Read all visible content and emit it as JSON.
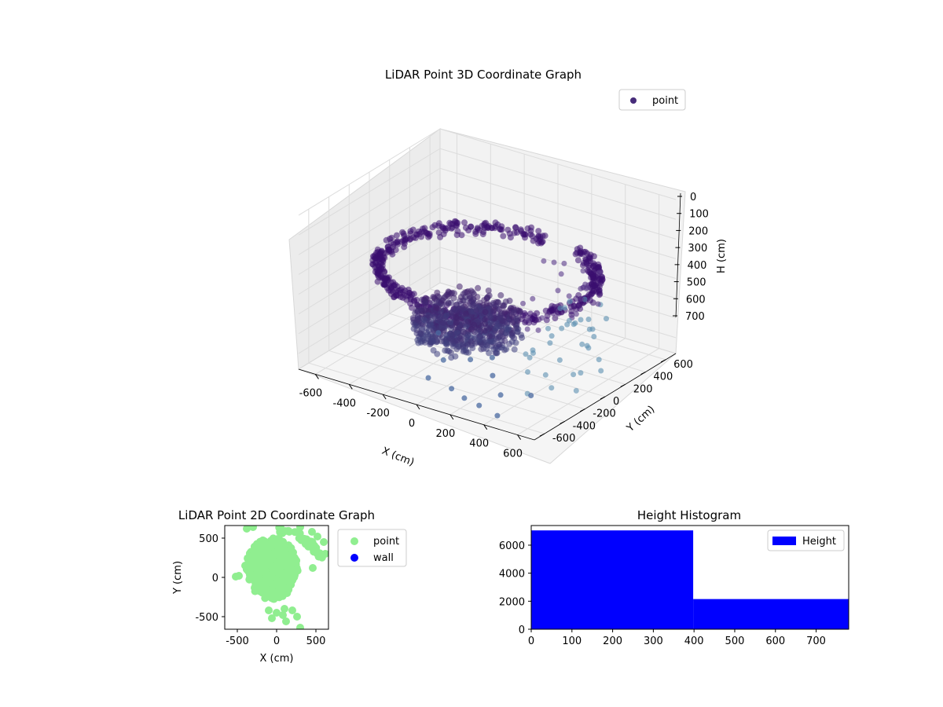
{
  "chart_data": [
    {
      "id": "lidar3d",
      "type": "scatter",
      "title": "LiDAR Point 3D Coordinate Graph",
      "xlabel": "X (cm)",
      "ylabel": "Y (cm)",
      "zlabel": "H (cm)",
      "xlim": [
        -700,
        700
      ],
      "ylim": [
        -700,
        700
      ],
      "zlim": [
        0,
        780
      ],
      "x_ticks": [
        -600,
        -400,
        -200,
        0,
        200,
        400,
        600
      ],
      "y_ticks": [
        -600,
        -400,
        -200,
        0,
        200,
        400,
        600
      ],
      "z_ticks": [
        0,
        100,
        200,
        300,
        400,
        500,
        600,
        700
      ],
      "z_inverted": true,
      "legend": {
        "placement": "top-right",
        "entries": [
          {
            "label": "point",
            "color": "#472c7a"
          }
        ]
      },
      "colors": {
        "dark": "#3b0f70",
        "mid": "#3b528b",
        "light": "#5b8fb0"
      },
      "note_colormap": "viridis-like, darker with greater height",
      "series": [
        {
          "name": "point",
          "kind": "ring",
          "r": 560,
          "theta_range": [
            90,
            430
          ],
          "h_range": [
            300,
            360
          ]
        },
        {
          "name": "point",
          "kind": "blob",
          "cx": -150,
          "cy": 50,
          "rx": 280,
          "ry": 280,
          "h_range": [
            320,
            480
          ]
        },
        {
          "name": "point",
          "kind": "sparse",
          "values": [
            {
              "x": -50,
              "y": -500,
              "h": 720
            },
            {
              "x": 100,
              "y": -520,
              "h": 730
            },
            {
              "x": 200,
              "y": -560,
              "h": 740
            },
            {
              "x": 300,
              "y": -580,
              "h": 745
            },
            {
              "x": 420,
              "y": -600,
              "h": 760
            },
            {
              "x": -80,
              "y": -300,
              "h": 700
            },
            {
              "x": 50,
              "y": -250,
              "h": 680
            },
            {
              "x": 150,
              "y": -200,
              "h": 660
            },
            {
              "x": 230,
              "y": -330,
              "h": 690
            },
            {
              "x": -200,
              "y": -150,
              "h": 640
            },
            {
              "x": 350,
              "y": -450,
              "h": 720
            },
            {
              "x": 500,
              "y": -400,
              "h": 700
            }
          ]
        }
      ]
    },
    {
      "id": "lidar2d",
      "type": "scatter",
      "title": "LiDAR Point 2D Coordinate Graph",
      "xlabel": "X (cm)",
      "ylabel": "Y (cm)",
      "xlim": [
        -660,
        660
      ],
      "ylim": [
        -660,
        660
      ],
      "x_ticks": [
        -500,
        0,
        500
      ],
      "y_ticks": [
        -500,
        0,
        500
      ],
      "legend": {
        "placement": "outside-right",
        "entries": [
          {
            "label": "point",
            "color": "#90ee90"
          },
          {
            "label": "wall",
            "color": "#0000ff"
          }
        ]
      },
      "series": [
        {
          "name": "point",
          "color": "#90ee90",
          "blob": {
            "cx": -60,
            "cy": 120,
            "rx": 330,
            "ry": 380
          }
        },
        {
          "name": "point",
          "color": "#90ee90",
          "values": [
            {
              "x": -380,
              "y": 620
            },
            {
              "x": -300,
              "y": 640
            },
            {
              "x": 300,
              "y": 640
            },
            {
              "x": 450,
              "y": 580
            },
            {
              "x": 520,
              "y": 520
            },
            {
              "x": 600,
              "y": 450
            },
            {
              "x": 620,
              "y": 300
            },
            {
              "x": 460,
              "y": 120
            },
            {
              "x": -480,
              "y": 20
            },
            {
              "x": -520,
              "y": 10
            },
            {
              "x": -400,
              "y": 150
            },
            {
              "x": -100,
              "y": -420
            },
            {
              "x": 0,
              "y": -450
            },
            {
              "x": 100,
              "y": -400
            },
            {
              "x": 200,
              "y": -420
            },
            {
              "x": 80,
              "y": -480
            },
            {
              "x": -60,
              "y": -520
            },
            {
              "x": 260,
              "y": -500
            },
            {
              "x": 120,
              "y": -560
            },
            {
              "x": 300,
              "y": -640
            }
          ]
        },
        {
          "name": "wall",
          "color": "#0000ff",
          "values": []
        }
      ]
    },
    {
      "id": "height_hist",
      "type": "bar",
      "title": "Height Histogram",
      "xlim": [
        0,
        780
      ],
      "ylim": [
        0,
        7400
      ],
      "x_ticks": [
        0,
        100,
        200,
        300,
        400,
        500,
        600,
        700
      ],
      "y_ticks": [
        0,
        2000,
        4000,
        6000
      ],
      "legend": {
        "placement": "top-right",
        "entries": [
          {
            "label": "Height",
            "color": "#0000ff"
          }
        ]
      },
      "series": [
        {
          "name": "Height",
          "color": "#0000ff",
          "bins": [
            {
              "x0": 0,
              "x1": 398,
              "value": 7050
            },
            {
              "x0": 398,
              "x1": 780,
              "value": 2150
            }
          ]
        }
      ]
    }
  ]
}
